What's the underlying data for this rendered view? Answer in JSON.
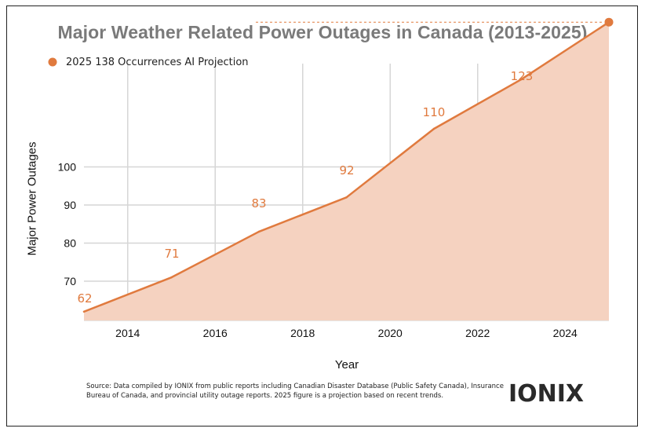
{
  "chart_data": {
    "type": "area",
    "title": "Major Weather Related Power Outages in Canada (2013-2025)",
    "xlabel": "Year",
    "ylabel": "Major Power Outages",
    "x": [
      2013,
      2015,
      2017,
      2019,
      2021,
      2023,
      2025
    ],
    "values": [
      62,
      71,
      83,
      92,
      110,
      123,
      138
    ],
    "x_ticks": [
      2014,
      2016,
      2018,
      2020,
      2022,
      2024
    ],
    "y_ticks": [
      70,
      80,
      90,
      100
    ],
    "xlim": [
      2013,
      2025
    ],
    "legend": "2025 138 Occurrences AI Projection",
    "legend_position": "top-left",
    "grid": true,
    "line_color": "#e07a3e",
    "fill_color": "#f5d2c0"
  },
  "footer": {
    "source": "Source: Data compiled by IONIX from public reports including Canadian Disaster Database (Public Safety Canada), Insurance Bureau of Canada, and provincial utility outage reports. 2025 figure is a projection based on recent trends."
  },
  "logo": {
    "text": "IONIX"
  }
}
